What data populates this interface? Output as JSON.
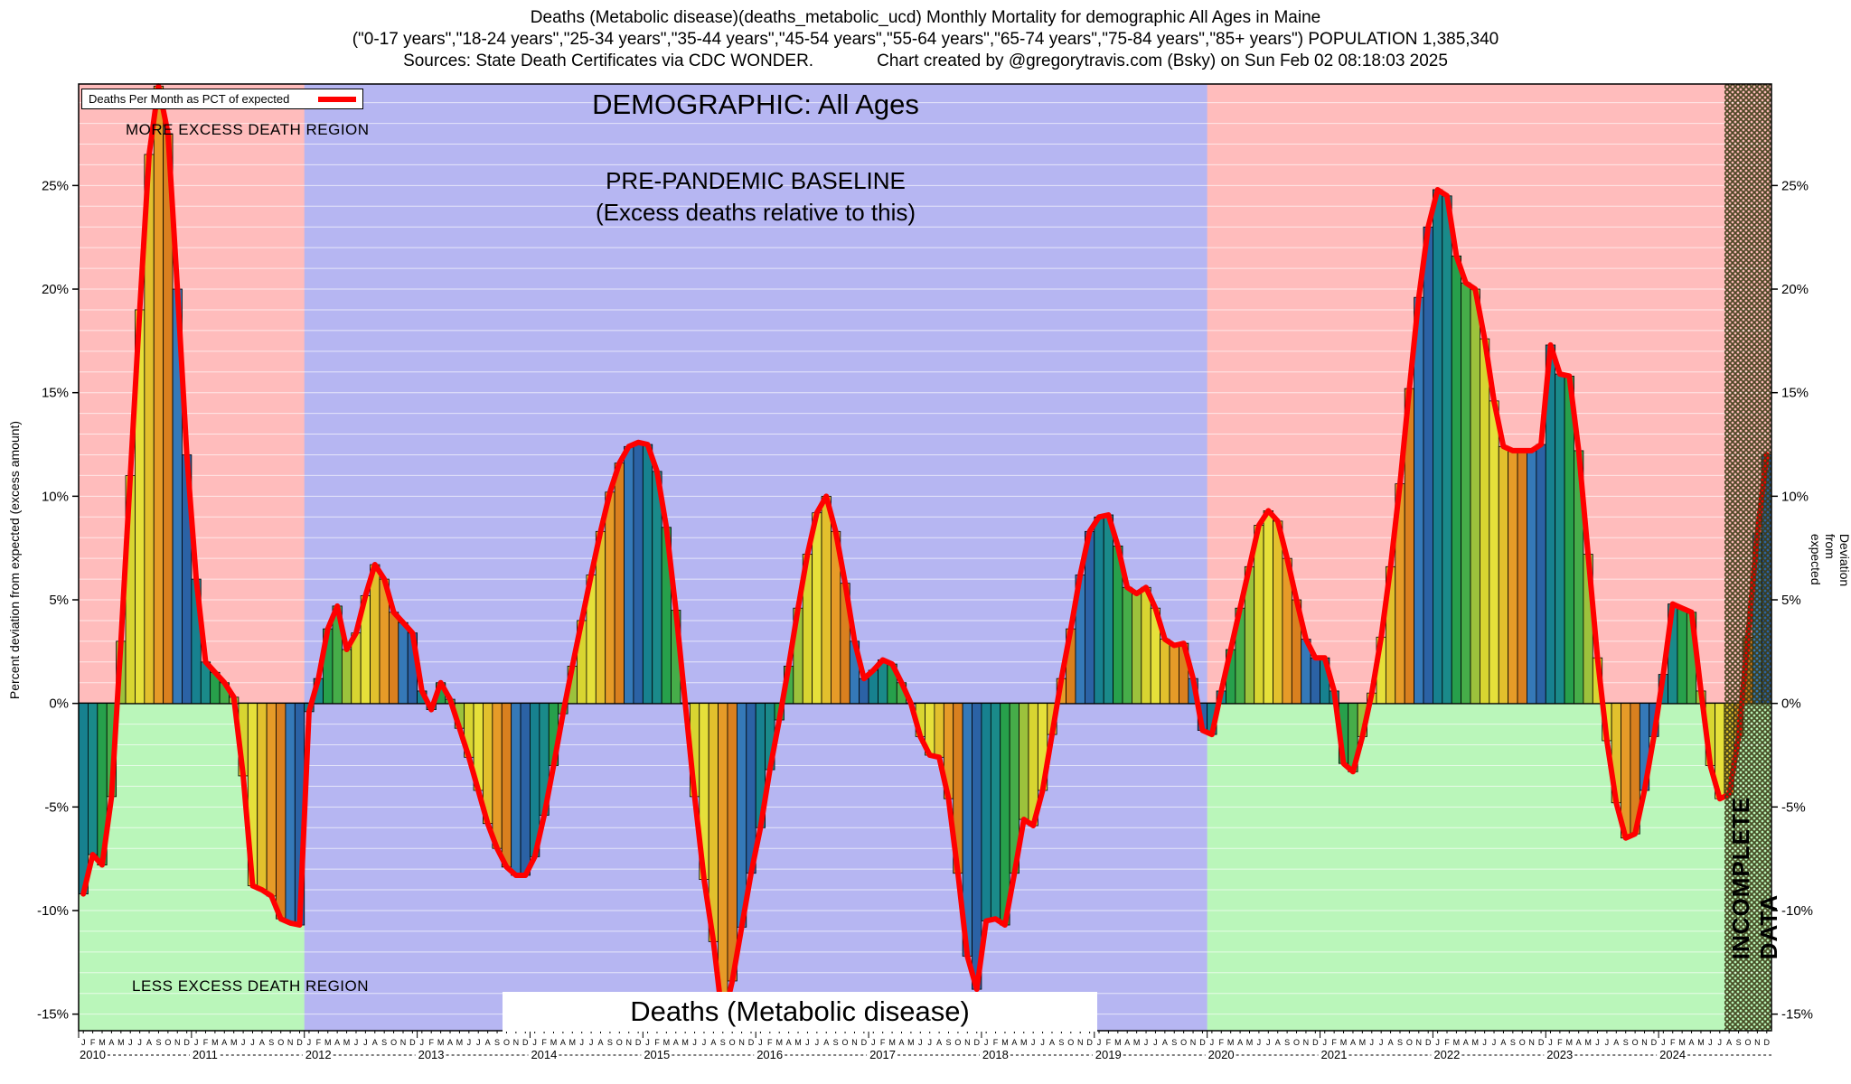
{
  "header": {
    "title_line1": "Deaths (Metabolic disease)(deaths_metabolic_ucd) Monthly Mortality for demographic All Ages in Maine",
    "title_line2": "(\"0-17 years\",\"18-24 years\",\"25-34 years\",\"35-44 years\",\"45-54 years\",\"55-64 years\",\"65-74 years\",\"75-84 years\",\"85+ years\") POPULATION 1,385,340",
    "title_line3_left": "Sources: State Death Certificates via CDC WONDER.",
    "title_line3_right": "Chart created by @gregorytravis.com (Bsky) on Sun Feb 02 08:18:03 2025"
  },
  "legend": {
    "label": "Deaths Per Month as PCT of expected"
  },
  "annotations": {
    "demographic": "DEMOGRAPHIC: All Ages",
    "baseline_line1": "PRE-PANDEMIC BASELINE",
    "baseline_line2": "(Excess deaths relative to this)",
    "more_region": "MORE EXCESS DEATH REGION",
    "less_region": "LESS EXCESS DEATH REGION",
    "bottom_label": "Deaths (Metabolic disease)",
    "incomplete": "INCOMPLETE DATA",
    "y_left": "Percent deviation from expected (excess amount)",
    "y_right": "Percent Deviation from expected"
  },
  "chart_data": {
    "type": "bar",
    "line_overlay": true,
    "title": "Deaths (Metabolic disease)",
    "ylabel": "Percent deviation from expected (excess amount)",
    "y2label": "Percent Deviation from expected",
    "ylim": [
      -15.8,
      29.9
    ],
    "yticks": [
      -15,
      -10,
      -5,
      0,
      5,
      10,
      15,
      20,
      25
    ],
    "years": [
      2010,
      2011,
      2012,
      2013,
      2014,
      2015,
      2016,
      2017,
      2018,
      2019,
      2020,
      2021,
      2022,
      2023,
      2024
    ],
    "month_letters": [
      "J",
      "F",
      "M",
      "A",
      "M",
      "J",
      "J",
      "A",
      "S",
      "O",
      "N",
      "D"
    ],
    "baseline_band_months": [
      24,
      120
    ],
    "incomplete_from_month": 175,
    "series": [
      {
        "name": "Deaths Per Month as PCT of expected",
        "values": [
          -9.2,
          -7.3,
          -7.8,
          -4.5,
          3.0,
          11.0,
          19.0,
          26.5,
          29.8,
          27.5,
          20.0,
          12.0,
          6.0,
          2.0,
          1.5,
          1.0,
          0.3,
          -3.5,
          -8.8,
          -9.0,
          -9.3,
          -10.4,
          -10.6,
          -10.7,
          -0.4,
          1.2,
          3.6,
          4.7,
          2.6,
          3.4,
          5.2,
          6.7,
          6.0,
          4.4,
          3.9,
          3.4,
          0.6,
          -0.3,
          1.0,
          0.2,
          -1.2,
          -2.6,
          -4.2,
          -5.8,
          -7.0,
          -7.9,
          -8.3,
          -8.3,
          -7.4,
          -5.4,
          -3.0,
          -0.5,
          1.8,
          4.0,
          6.2,
          8.3,
          10.2,
          11.6,
          12.4,
          12.6,
          12.5,
          11.2,
          8.5,
          4.5,
          0.0,
          -4.5,
          -8.5,
          -11.5,
          -15.4,
          -13.4,
          -10.8,
          -8.2,
          -6.0,
          -3.2,
          -0.8,
          1.8,
          4.6,
          7.2,
          9.2,
          10.0,
          8.3,
          5.8,
          3.0,
          1.2,
          1.6,
          2.1,
          1.9,
          1.0,
          0.0,
          -1.6,
          -2.5,
          -2.6,
          -4.6,
          -8.2,
          -12.2,
          -13.8,
          -10.5,
          -10.4,
          -10.7,
          -8.2,
          -5.6,
          -5.9,
          -4.2,
          -1.5,
          1.2,
          3.6,
          6.2,
          8.3,
          9.0,
          9.1,
          7.6,
          5.6,
          5.3,
          5.6,
          4.6,
          3.1,
          2.8,
          2.9,
          1.2,
          -1.3,
          -1.5,
          0.6,
          2.6,
          4.6,
          6.6,
          8.6,
          9.3,
          8.8,
          7.0,
          5.0,
          3.1,
          2.2,
          2.2,
          0.6,
          -2.9,
          -3.3,
          -1.6,
          0.5,
          3.2,
          6.6,
          10.6,
          15.2,
          19.6,
          23.0,
          24.8,
          24.5,
          21.6,
          20.3,
          20.0,
          17.6,
          14.6,
          12.4,
          12.2,
          12.2,
          12.2,
          12.5,
          17.3,
          15.9,
          15.8,
          12.2,
          7.2,
          2.2,
          -1.8,
          -4.8,
          -6.5,
          -6.3,
          -4.2,
          -1.6,
          1.4,
          4.8,
          4.6,
          4.4,
          0.6,
          -3.0,
          -4.6,
          -4.4,
          -1.6,
          3.2,
          8.2,
          12.0
        ]
      }
    ],
    "colors": {
      "above_zero_bg": "#ffbcbc",
      "below_zero_bg": "#baf6ba",
      "baseline_band": "#b6b6f2",
      "line": "#ff0000",
      "grid": "#ffffff",
      "hatch": "#3a3a14",
      "month_palette": [
        "#17818f",
        "#1a8a8a",
        "#27a04b",
        "#46ad49",
        "#9cc23c",
        "#d8d531",
        "#e6e03a",
        "#e2c02d",
        "#e69b28",
        "#d9801f",
        "#3579b8",
        "#2b62a5"
      ]
    }
  }
}
